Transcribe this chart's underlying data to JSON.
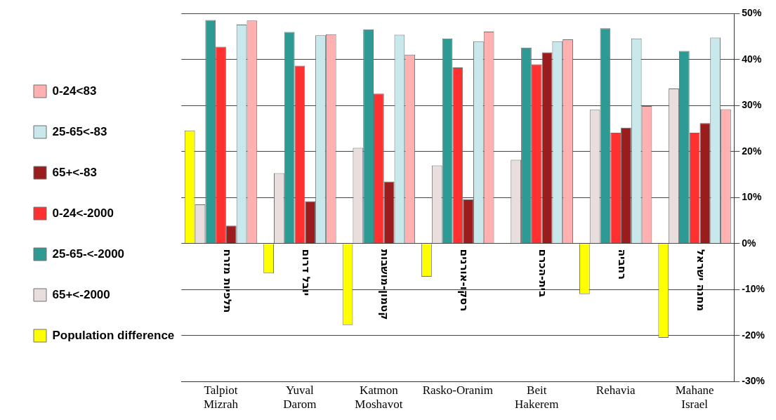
{
  "chart_data": {
    "type": "bar",
    "categories": [
      "Talpiot Mizrah",
      "Yuval Darom",
      "Katmon Moshavot",
      "Rasko-Oranim",
      "Beit Hakerem",
      "Rehavia",
      "Mahane Israel"
    ],
    "series": [
      {
        "name": "Population difference",
        "color": "#ffff00",
        "values": [
          24.6,
          -6.5,
          -17.7,
          -7.2,
          0,
          -11.0,
          -20.5
        ]
      },
      {
        "name": "65+<-2000",
        "color": "#e8dede",
        "values": [
          8.5,
          15.3,
          20.8,
          17.0,
          18.2,
          29.1,
          33.7
        ]
      },
      {
        "name": "25-65-<-2000",
        "color": "#2e9a94",
        "values": [
          48.6,
          46.0,
          46.6,
          44.6,
          42.6,
          46.8,
          41.9
        ]
      },
      {
        "name": "0-24<-2000",
        "color": "#ff3030",
        "values": [
          42.8,
          38.7,
          32.6,
          38.3,
          39.0,
          24.1,
          24.1
        ]
      },
      {
        "name": "65+<-83",
        "color": "#9b1c1c",
        "values": [
          3.9,
          9.2,
          13.5,
          9.6,
          41.6,
          25.2,
          26.2
        ]
      },
      {
        "name": "25-65<-83",
        "color": "#c8e8ec",
        "values": [
          47.6,
          45.3,
          45.4,
          44.0,
          44.0,
          44.6,
          44.8
        ]
      },
      {
        "name": "0-24<83",
        "color": "#ffb0b0",
        "values": [
          48.5,
          45.5,
          41.1,
          46.1,
          44.4,
          29.9,
          29.2
        ]
      }
    ],
    "ylim": [
      -30,
      50
    ],
    "yticks": [
      {
        "value": -30,
        "label": "-30%"
      },
      {
        "value": -20,
        "label": "-20%"
      },
      {
        "value": -10,
        "label": "-10%"
      },
      {
        "value": 0,
        "label": "0%"
      },
      {
        "value": 10,
        "label": "10%"
      },
      {
        "value": 20,
        "label": "20%"
      },
      {
        "value": 30,
        "label": "30%"
      },
      {
        "value": 40,
        "label": "40%"
      },
      {
        "value": 50,
        "label": "50%"
      }
    ],
    "grid": "y",
    "legend": "left",
    "annotations": [
      "תלפיות מזרח",
      "יובל דרום",
      "קטמון-מושבות",
      "רסקו-אורנים",
      "בית-הכרם",
      "רחביה",
      "מחנה ישראל"
    ]
  }
}
